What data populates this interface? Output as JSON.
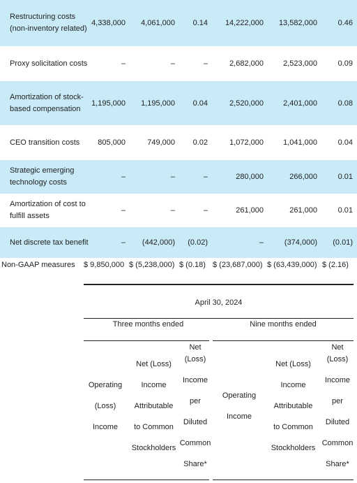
{
  "rows": [
    {
      "label": "Restructuring costs (non-inventory related)",
      "values": [
        "4,338,000",
        "4,061,000",
        "0.14",
        "14,222,000",
        "13,582,000",
        "0.46"
      ]
    },
    {
      "label": "Proxy solicitation costs",
      "values": [
        "–",
        "–",
        "–",
        "2,682,000",
        "2,523,000",
        "0.09"
      ]
    },
    {
      "label": "Amortization of stock-based compensation",
      "values": [
        "1,195,000",
        "1,195,000",
        "0.04",
        "2,520,000",
        "2,401,000",
        "0.08"
      ]
    },
    {
      "label": "CEO transition costs",
      "values": [
        "805,000",
        "749,000",
        "0.02",
        "1,072,000",
        "1,041,000",
        "0.04"
      ]
    },
    {
      "label": "Strategic emerging technology costs",
      "values": [
        "–",
        "–",
        "–",
        "280,000",
        "266,000",
        "0.01"
      ]
    },
    {
      "label": "Amortization of cost to fulfill assets",
      "values": [
        "–",
        "–",
        "–",
        "261,000",
        "261,000",
        "0.01"
      ]
    },
    {
      "label": "Net discrete tax benefit",
      "values": [
        "–",
        "(442,000)",
        "(0.02)",
        "–",
        "(374,000)",
        "(0.01)"
      ]
    }
  ],
  "totals": {
    "label": "Non-GAAP measures",
    "v1": "$ 9,850,000",
    "v2": "$ (5,238,000)",
    "v3": "$ (0.18)",
    "v4": "$ (23,687,000)",
    "v5": "$ (63,439,000)",
    "v6": "$ (2.16)"
  },
  "header": {
    "date": "April 30, 2024",
    "three_months": "Three months ended",
    "nine_months": "Nine months ended",
    "col_operating_3m": [
      "Operating",
      "(Loss)",
      "Income"
    ],
    "col_net_3m": [
      "Net (Loss)",
      "Income",
      "Attributable",
      "to Common",
      "Stockholders"
    ],
    "col_eps_3m": [
      "Net",
      "(Loss)",
      "Income",
      "per",
      "Diluted",
      "Common",
      "Share*"
    ],
    "col_operating_9m": [
      "Operating",
      "Income"
    ],
    "col_net_9m": [
      "Net (Loss)",
      "Income",
      "Attributable",
      "to Common",
      "Stockholders"
    ],
    "col_eps_9m": [
      "Net",
      "(Loss)",
      "Income",
      "per",
      "Diluted",
      "Common",
      "Share*"
    ]
  }
}
